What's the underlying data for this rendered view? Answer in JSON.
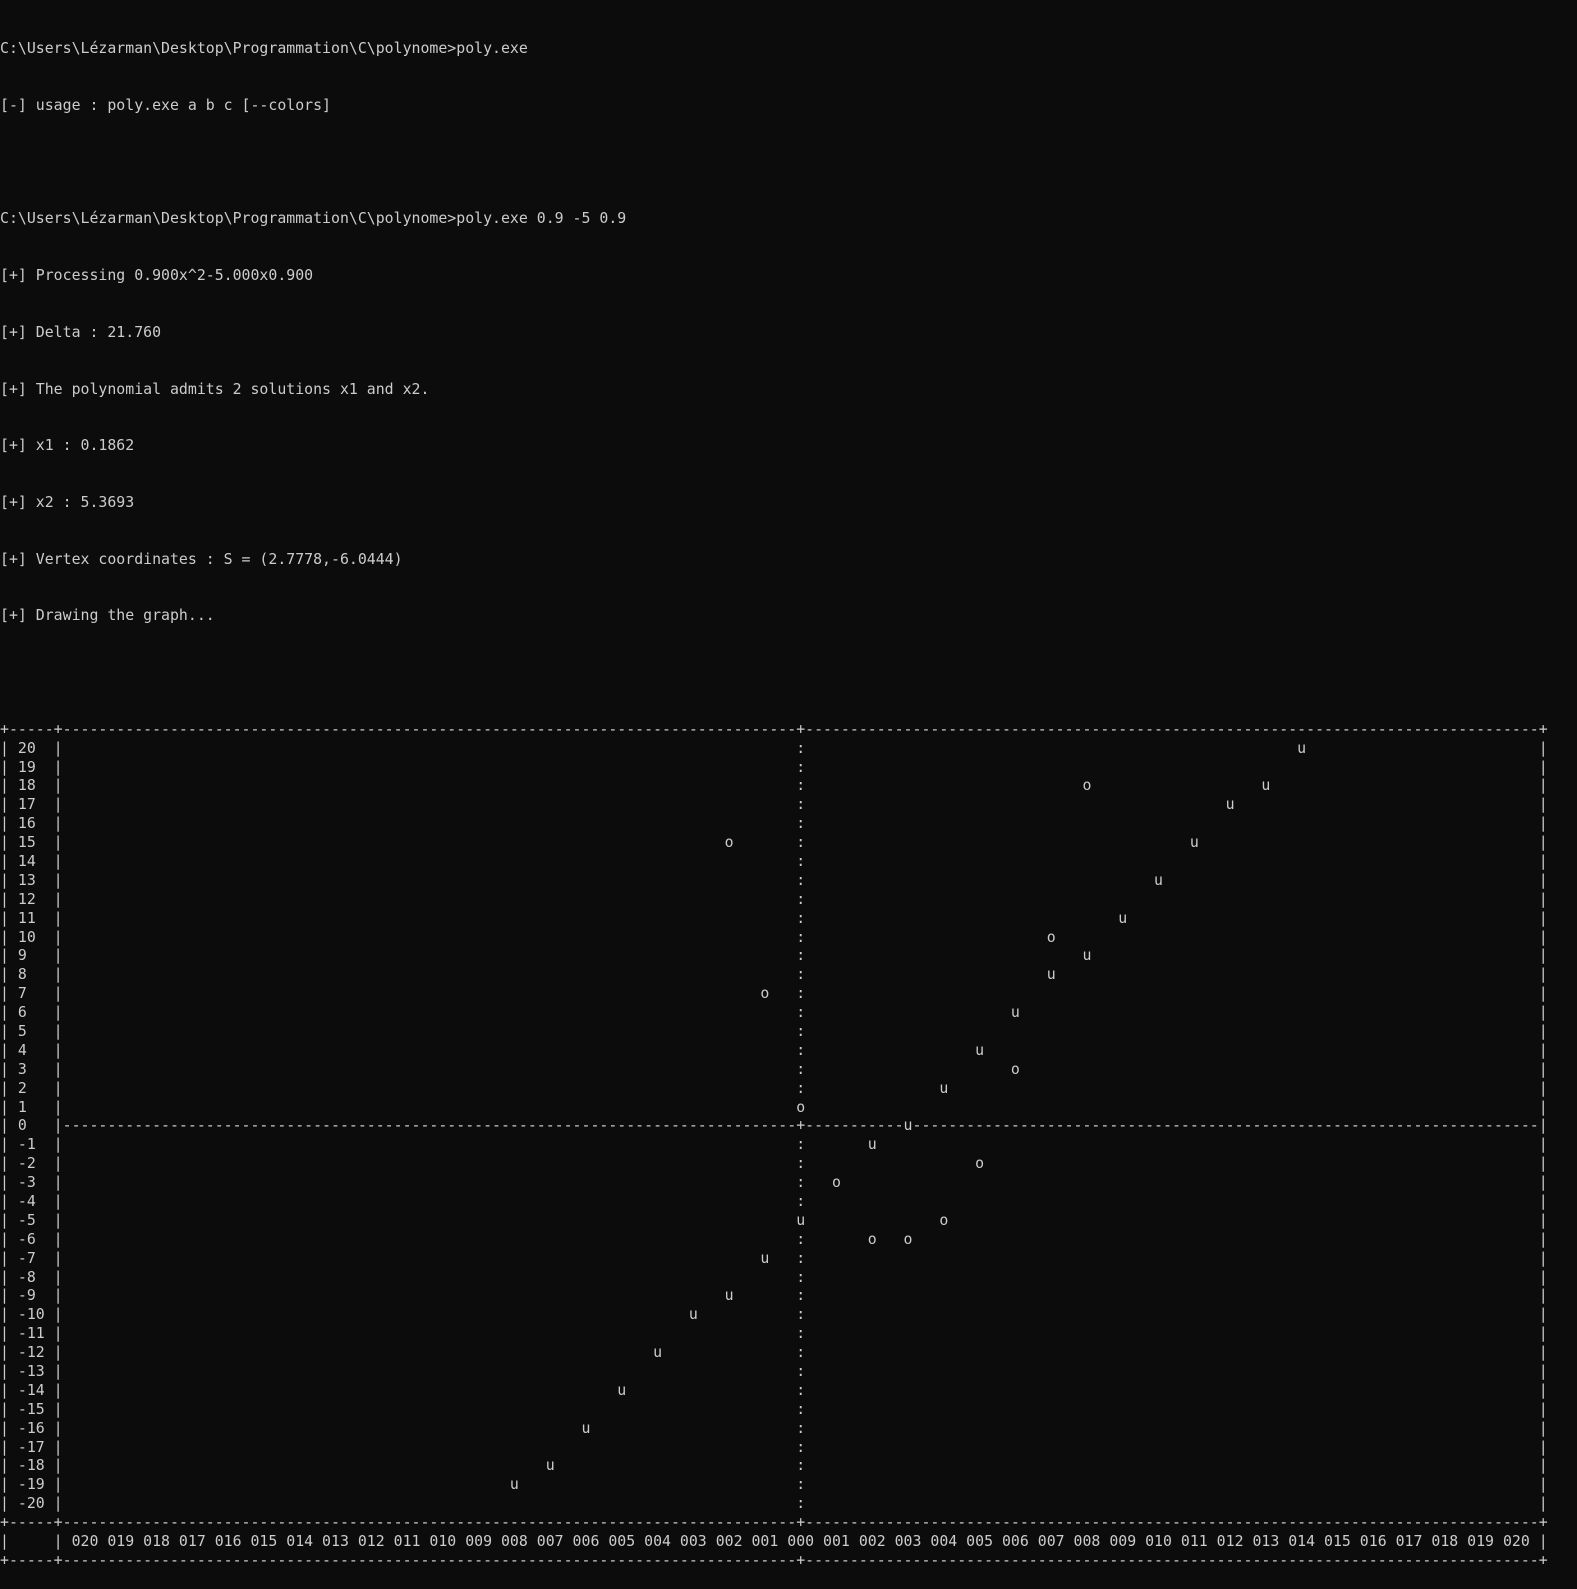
{
  "terminal": {
    "background": "#0c0c0c",
    "foreground": "#cccccc",
    "lines": [
      "C:\\Users\\Lézarman\\Desktop\\Programmation\\C\\polynome>poly.exe",
      "[-] usage : poly.exe a b c [--colors]",
      "",
      "C:\\Users\\Lézarman\\Desktop\\Programmation\\C\\polynome>poly.exe 0.9 -5 0.9",
      "[+] Processing 0.900x^2-5.000x0.900",
      "[+] Delta : 21.760",
      "[+] The polynomial admits 2 solutions x1 and x2.",
      "[+] x1 : 0.1862",
      "[+] x2 : 5.3693",
      "[+] Vertex coordinates : S = (2.7778,-6.0444)",
      "[+] Drawing the graph...",
      ""
    ]
  },
  "graph": {
    "y_labels": [
      "20",
      "19",
      "18",
      "17",
      "16",
      "15",
      "14",
      "13",
      "12",
      "11",
      "10",
      "9",
      "8",
      "7",
      "6",
      "5",
      "4",
      "3",
      "2",
      "1",
      "0",
      "-1",
      "-2",
      "-3",
      "-4",
      "-5",
      "-6",
      "-7",
      "-8",
      "-9",
      "-10",
      "-11",
      "-12",
      "-13",
      "-14",
      "-15",
      "-16",
      "-17",
      "-18",
      "-19",
      "-20"
    ],
    "x_labels": [
      "020",
      "019",
      "018",
      "017",
      "016",
      "015",
      "014",
      "013",
      "012",
      "011",
      "010",
      "009",
      "008",
      "007",
      "006",
      "005",
      "004",
      "003",
      "002",
      "001",
      "000",
      "001",
      "002",
      "003",
      "004",
      "005",
      "006",
      "007",
      "008",
      "009",
      "010",
      "011",
      "012",
      "013",
      "014",
      "015",
      "016",
      "017",
      "018",
      "019",
      "020"
    ],
    "points": [
      {
        "y": 20,
        "x": 14,
        "char": "u"
      },
      {
        "y": 18,
        "x": 8,
        "char": "o"
      },
      {
        "y": 18,
        "x": 13,
        "char": "u"
      },
      {
        "y": 17,
        "x": 12,
        "char": "u"
      },
      {
        "y": 15,
        "x": -2,
        "char": "o"
      },
      {
        "y": 15,
        "x": 11,
        "char": "u"
      },
      {
        "y": 13,
        "x": 10,
        "char": "u"
      },
      {
        "y": 11,
        "x": 9,
        "char": "u"
      },
      {
        "y": 10,
        "x": 7,
        "char": "o"
      },
      {
        "y": 9,
        "x": 8,
        "char": "u"
      },
      {
        "y": 8,
        "x": 7,
        "char": "u"
      },
      {
        "y": 7,
        "x": -1,
        "char": "o"
      },
      {
        "y": 6,
        "x": 6,
        "char": "u"
      },
      {
        "y": 4,
        "x": 5,
        "char": "u"
      },
      {
        "y": 3,
        "x": 6,
        "char": "o"
      },
      {
        "y": 2,
        "x": 4,
        "char": "u"
      },
      {
        "y": 1,
        "x": 0,
        "char": "o"
      },
      {
        "y": 0,
        "x": 3,
        "char": "u"
      },
      {
        "y": -1,
        "x": 2,
        "char": "u"
      },
      {
        "y": -2,
        "x": 5,
        "char": "o"
      },
      {
        "y": -3,
        "x": 1,
        "char": "o"
      },
      {
        "y": -5,
        "x": 0,
        "char": "u"
      },
      {
        "y": -5,
        "x": 4,
        "char": "o"
      },
      {
        "y": -6,
        "x": 2,
        "char": "o"
      },
      {
        "y": -6,
        "x": 3,
        "char": "o"
      },
      {
        "y": -7,
        "x": -1,
        "char": "u"
      },
      {
        "y": -9,
        "x": -2,
        "char": "u"
      },
      {
        "y": -10,
        "x": -3,
        "char": "u"
      },
      {
        "y": -12,
        "x": -4,
        "char": "u"
      },
      {
        "y": -14,
        "x": -5,
        "char": "u"
      },
      {
        "y": -16,
        "x": -6,
        "char": "u"
      },
      {
        "y": -18,
        "x": -7,
        "char": "u"
      },
      {
        "y": -19,
        "x": -8,
        "char": "u"
      }
    ]
  }
}
